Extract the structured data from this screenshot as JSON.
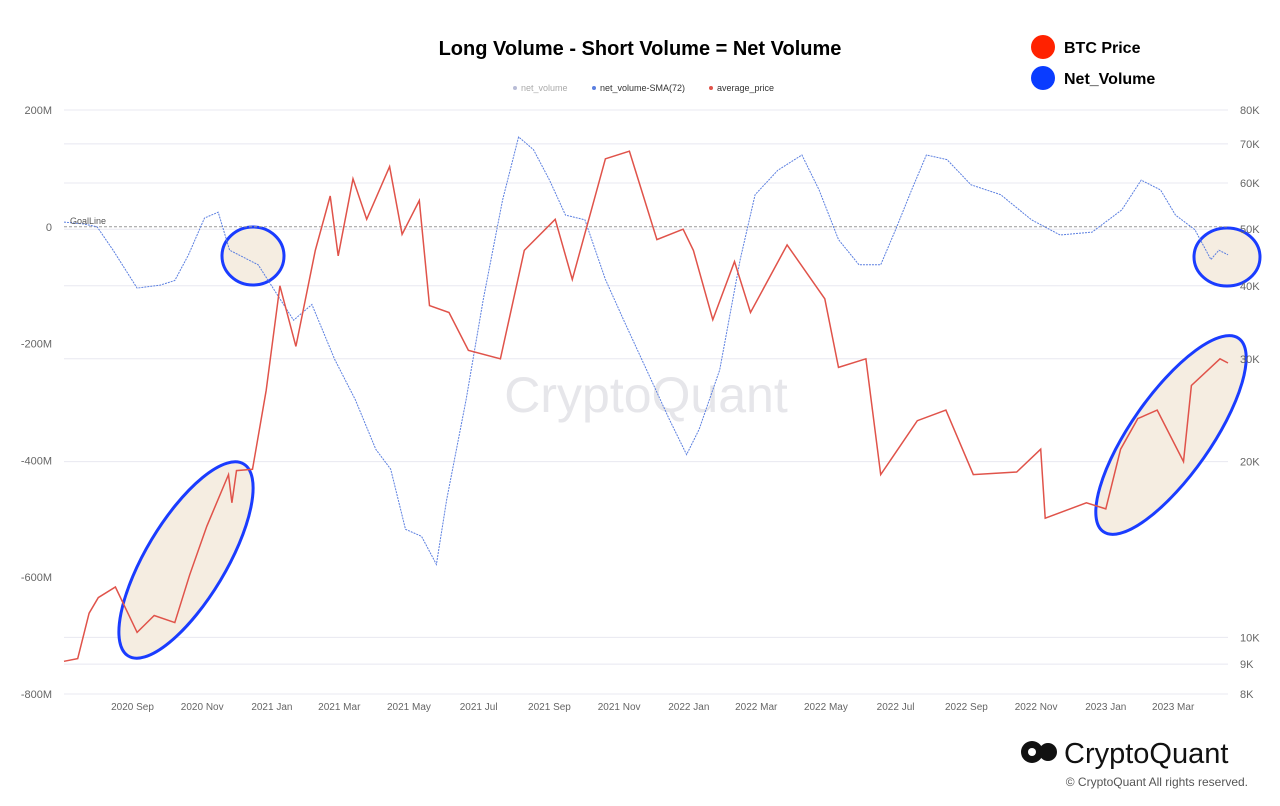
{
  "chart_data": {
    "type": "line",
    "title": "Long Volume - Short Volume = Net Volume",
    "xlabel": "",
    "ylabel_left": "",
    "ylabel_right": "",
    "x_ticks": [
      "2020 Sep",
      "2020 Nov",
      "2021 Jan",
      "2021 Mar",
      "2021 May",
      "2021 Jul",
      "2021 Sep",
      "2021 Nov",
      "2022 Jan",
      "2022 Mar",
      "2022 May",
      "2022 Jul",
      "2022 Sep",
      "2022 Nov",
      "2023 Jan",
      "2023 Mar"
    ],
    "x_tick_dates": [
      "2020-09-01",
      "2020-11-01",
      "2021-01-01",
      "2021-03-01",
      "2021-05-01",
      "2021-07-01",
      "2021-09-01",
      "2021-11-01",
      "2022-01-01",
      "2022-03-01",
      "2022-05-01",
      "2022-07-01",
      "2022-09-01",
      "2022-11-01",
      "2023-01-01",
      "2023-03-01"
    ],
    "xlim": [
      "2020-07-03",
      "2023-04-18"
    ],
    "y_left": {
      "ticks": [
        "200M",
        "0",
        "-200M",
        "-400M",
        "-600M",
        "-800M"
      ],
      "tick_values": [
        200,
        0,
        -200,
        -400,
        -600,
        -800
      ],
      "ylim": [
        -800,
        200
      ],
      "unit": "M"
    },
    "y_right": {
      "ticks": [
        "80K",
        "70K",
        "60K",
        "50K",
        "40K",
        "30K",
        "20K",
        "10K",
        "9K",
        "8K"
      ],
      "tick_values": [
        80000,
        70000,
        60000,
        50000,
        40000,
        30000,
        20000,
        10000,
        9000,
        8000
      ],
      "ylim": [
        8000,
        80000
      ],
      "scale": "log"
    },
    "grid": true,
    "goal_line": {
      "label": "GoalLine",
      "value": 0
    },
    "legend": {
      "placement": "top",
      "entries": [
        "net_volume",
        "net_volume-SMA(72)",
        "average_price"
      ]
    },
    "series": [
      {
        "name": "net_volume",
        "color": "#b8bcd6",
        "axis": "left",
        "dates": [],
        "values": []
      },
      {
        "name": "net_volume-SMA(72)",
        "color": "#5b7fe0",
        "axis": "left",
        "dates": [
          "2020-07-03",
          "2020-07-20",
          "2020-08-01",
          "2020-08-15",
          "2020-09-05",
          "2020-09-25",
          "2020-10-08",
          "2020-10-20",
          "2020-11-03",
          "2020-11-15",
          "2020-11-25",
          "2020-12-20",
          "2021-01-03",
          "2021-01-20",
          "2021-02-05",
          "2021-02-25",
          "2021-03-15",
          "2021-04-02",
          "2021-04-15",
          "2021-04-28",
          "2021-05-12",
          "2021-05-25",
          "2021-06-03",
          "2021-06-20",
          "2021-07-05",
          "2021-07-22",
          "2021-08-05",
          "2021-08-18",
          "2021-09-01",
          "2021-09-15",
          "2021-10-02",
          "2021-10-20",
          "2021-11-05",
          "2021-11-25",
          "2021-12-15",
          "2021-12-30",
          "2022-01-10",
          "2022-01-28",
          "2022-02-15",
          "2022-02-28",
          "2022-03-20",
          "2022-04-10",
          "2022-04-25",
          "2022-05-12",
          "2022-05-30",
          "2022-06-18",
          "2022-07-01",
          "2022-07-15",
          "2022-07-28",
          "2022-08-15",
          "2022-09-05",
          "2022-10-01",
          "2022-10-28",
          "2022-11-22",
          "2022-12-20",
          "2023-01-15",
          "2023-02-01",
          "2023-02-18",
          "2023-03-03",
          "2023-03-20",
          "2023-04-03",
          "2023-04-10",
          "2023-04-18"
        ],
        "values": [
          8,
          5,
          0,
          -40,
          -105,
          -100,
          -92,
          -48,
          15,
          25,
          -40,
          -65,
          -108,
          -160,
          -133,
          -227,
          -296,
          -381,
          -415,
          -518,
          -530,
          -578,
          -467,
          -296,
          -125,
          46,
          154,
          132,
          80,
          20,
          12,
          -90,
          -160,
          -245,
          -330,
          -390,
          -347,
          -245,
          -56,
          55,
          97,
          123,
          63,
          -22,
          -65,
          -65,
          -5,
          63,
          123,
          115,
          72,
          55,
          12,
          -14,
          -9,
          29,
          80,
          63,
          20,
          -5,
          -56,
          -40,
          -48
        ]
      },
      {
        "name": "average_price",
        "color": "#e0534a",
        "axis": "right",
        "dates": [
          "2020-07-03",
          "2020-07-15",
          "2020-07-25",
          "2020-08-02",
          "2020-08-17",
          "2020-09-05",
          "2020-09-20",
          "2020-10-08",
          "2020-10-21",
          "2020-11-05",
          "2020-11-24",
          "2020-11-27",
          "2020-12-01",
          "2020-12-15",
          "2020-12-27",
          "2021-01-08",
          "2021-01-22",
          "2021-02-08",
          "2021-02-21",
          "2021-02-28",
          "2021-03-13",
          "2021-03-25",
          "2021-04-14",
          "2021-04-25",
          "2021-05-10",
          "2021-05-19",
          "2021-06-05",
          "2021-06-22",
          "2021-07-20",
          "2021-08-10",
          "2021-09-06",
          "2021-09-21",
          "2021-10-20",
          "2021-11-10",
          "2021-12-04",
          "2021-12-27",
          "2022-01-05",
          "2022-01-22",
          "2022-02-10",
          "2022-02-24",
          "2022-03-28",
          "2022-04-30",
          "2022-05-12",
          "2022-06-05",
          "2022-06-18",
          "2022-07-20",
          "2022-08-14",
          "2022-09-07",
          "2022-10-15",
          "2022-11-05",
          "2022-11-09",
          "2022-12-15",
          "2023-01-01",
          "2023-01-14",
          "2023-01-29",
          "2023-02-15",
          "2023-03-10",
          "2023-03-17",
          "2023-04-11",
          "2023-04-18"
        ],
        "values": [
          9100,
          9200,
          11000,
          11700,
          12200,
          10200,
          10900,
          10600,
          12800,
          15500,
          19000,
          17000,
          19300,
          19400,
          26500,
          40000,
          31500,
          46000,
          57000,
          45000,
          61000,
          52000,
          64000,
          49000,
          56000,
          37000,
          36000,
          31000,
          30000,
          46000,
          52000,
          41000,
          66000,
          68000,
          48000,
          50000,
          46000,
          35000,
          44000,
          36000,
          47000,
          38000,
          29000,
          30000,
          19000,
          23500,
          24500,
          19000,
          19200,
          21000,
          16000,
          17000,
          16600,
          21000,
          23700,
          24500,
          20000,
          27000,
          30000,
          29500
        ]
      }
    ],
    "annotations": {
      "legend": [
        {
          "label": "BTC Price",
          "color": "#ff2200"
        },
        {
          "label": "Net_Volume",
          "color": "#0a3cff"
        }
      ],
      "highlight_color": "#f5ede1",
      "highlight_stroke": "#1a3cff"
    }
  },
  "watermark": "CryptoQuant",
  "brand": {
    "logo_text": "CryptoQuant",
    "copyright": "© CryptoQuant All rights reserved."
  }
}
